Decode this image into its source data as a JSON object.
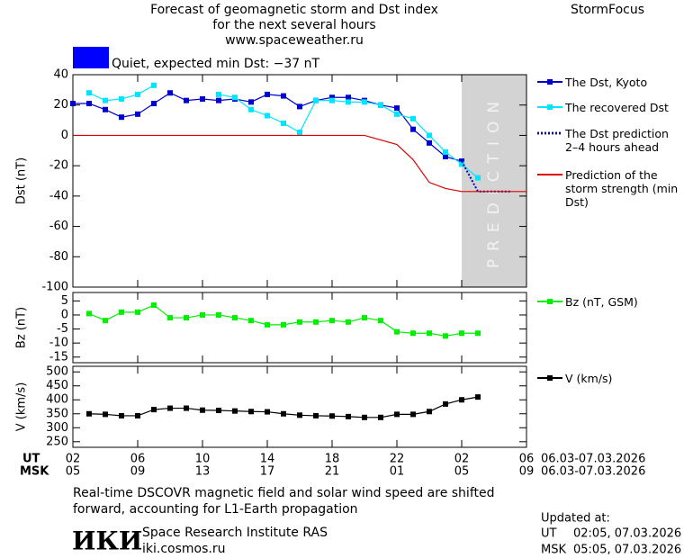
{
  "header": {
    "title": [
      "Forecast of geomagnetic storm and Dst index",
      "for the next several hours",
      "www.spaceweather.ru"
    ],
    "brand": "StormFocus",
    "status": "Quiet, expected min Dst: −37 nT",
    "status_color": "#0000ff"
  },
  "chart_data": [
    {
      "type": "line",
      "ylabel": "Dst (nT)",
      "xlim": [
        0,
        28
      ],
      "xticks": [
        0,
        4,
        8,
        12,
        16,
        20,
        24,
        28
      ],
      "ylim": [
        -100,
        40
      ],
      "yticks": [
        -100,
        -80,
        -60,
        -40,
        -20,
        0,
        20,
        40
      ],
      "prediction_band": {
        "label": "PREDICTION",
        "x": [
          24,
          28
        ],
        "color": "#d3d3d3"
      },
      "series": [
        {
          "name": "The Dst, Kyoto",
          "color": "#0000cc",
          "marker": "square",
          "dash": "solid",
          "x": [
            0,
            1,
            2,
            3,
            4,
            5,
            6,
            7,
            8,
            9,
            10,
            11,
            12,
            13,
            14,
            15,
            16,
            17,
            18,
            19,
            20,
            21,
            22,
            23,
            24
          ],
          "values": [
            21,
            21,
            17,
            12,
            14,
            21,
            28,
            23,
            24,
            23,
            24,
            22,
            27,
            26,
            19,
            23,
            25,
            25,
            23,
            20,
            18,
            4,
            -5,
            -14,
            -17
          ]
        },
        {
          "name": "The recovered Dst",
          "color": "#00e5ff",
          "marker": "square",
          "dash": "solid",
          "x": [
            1,
            2,
            3,
            4,
            5,
            6,
            7,
            8,
            9,
            10,
            11,
            12,
            13,
            14,
            15,
            16,
            17,
            18,
            19,
            20,
            21,
            22,
            23,
            24,
            25
          ],
          "values": [
            28,
            23,
            24,
            27,
            33,
            null,
            null,
            null,
            27,
            25,
            17,
            13,
            8,
            2,
            23,
            23,
            22,
            22,
            20,
            14,
            11,
            0,
            -11,
            -19,
            -28
          ]
        },
        {
          "name": "The Dst prediction 2–4 hours ahead",
          "color": "#0000aa",
          "marker": "none",
          "dash": "dotted",
          "x": [
            24,
            25,
            27
          ],
          "values": [
            -17,
            -37,
            -37
          ]
        },
        {
          "name": "Prediction of the storm strength (min Dst)",
          "color": "#dd0000",
          "marker": "none",
          "dash": "solid",
          "x": [
            0,
            18,
            20,
            21,
            22,
            23,
            24,
            28
          ],
          "values": [
            0,
            0,
            -6,
            -16,
            -31,
            -35,
            -37,
            -37
          ]
        }
      ]
    },
    {
      "type": "line",
      "ylabel": "Bz (nT)",
      "xlim": [
        0,
        28
      ],
      "xticks": [
        0,
        4,
        8,
        12,
        16,
        20,
        24,
        28
      ],
      "ylim": [
        -17,
        8
      ],
      "yticks": [
        -15,
        -10,
        -5,
        0,
        5
      ],
      "series": [
        {
          "name": "Bz (nT, GSM)",
          "color": "#00ee00",
          "marker": "square",
          "dash": "solid",
          "x": [
            1,
            2,
            3,
            4,
            5,
            6,
            7,
            8,
            9,
            10,
            11,
            12,
            13,
            14,
            15,
            16,
            17,
            18,
            19,
            20,
            21,
            22,
            23,
            24,
            25
          ],
          "values": [
            0.5,
            -2,
            1,
            1,
            3.5,
            -1,
            -1,
            0,
            0,
            -1,
            -2,
            -3.5,
            -3.5,
            -2.5,
            -2.5,
            -2,
            -2.5,
            -1,
            -2,
            -6,
            -6.5,
            -6.5,
            -7.5,
            -6.5,
            -6.5
          ]
        }
      ]
    },
    {
      "type": "line",
      "ylabel": "V (km/s)",
      "xlim": [
        0,
        28
      ],
      "xticks": [
        {
          "value": 0,
          "label": "02"
        },
        {
          "value": 4,
          "label": "06"
        },
        {
          "value": 8,
          "label": "10"
        },
        {
          "value": 12,
          "label": "14"
        },
        {
          "value": 16,
          "label": "18"
        },
        {
          "value": 20,
          "label": "22"
        },
        {
          "value": 24,
          "label": "02"
        },
        {
          "value": 28,
          "label": "06"
        }
      ],
      "xticks_msk": [
        "05",
        "09",
        "13",
        "17",
        "21",
        "01",
        "05",
        "09"
      ],
      "ylim": [
        230,
        520
      ],
      "yticks": [
        250,
        300,
        350,
        400,
        450,
        500
      ],
      "series": [
        {
          "name": "V (km/s)",
          "color": "#000000",
          "marker": "square",
          "dash": "solid",
          "x": [
            1,
            2,
            3,
            4,
            5,
            6,
            7,
            8,
            9,
            10,
            11,
            12,
            13,
            14,
            15,
            16,
            17,
            18,
            19,
            20,
            21,
            22,
            23,
            24,
            25
          ],
          "values": [
            350,
            348,
            343,
            343,
            365,
            370,
            370,
            363,
            362,
            360,
            358,
            357,
            350,
            345,
            343,
            342,
            340,
            337,
            337,
            348,
            348,
            358,
            385,
            400,
            410
          ]
        }
      ]
    }
  ],
  "time_rows": [
    {
      "name": "UT",
      "date": "06.03-07.03.2026"
    },
    {
      "name": "MSK",
      "date": "06.03-07.03.2026"
    }
  ],
  "footer": {
    "note": [
      "Real-time DSCOVR magnetic field and solar wind speed are shifted",
      "forward, accounting for L1-Earth propagation"
    ],
    "logo": "ИКИ",
    "institute": "Space Research Institute RAS",
    "site": "iki.cosmos.ru",
    "updated": {
      "label": "Updated at:",
      "rows": [
        [
          "UT",
          "02:05, 07.03.2026"
        ],
        [
          "MSK",
          "05:05, 07.03.2026"
        ]
      ]
    }
  }
}
